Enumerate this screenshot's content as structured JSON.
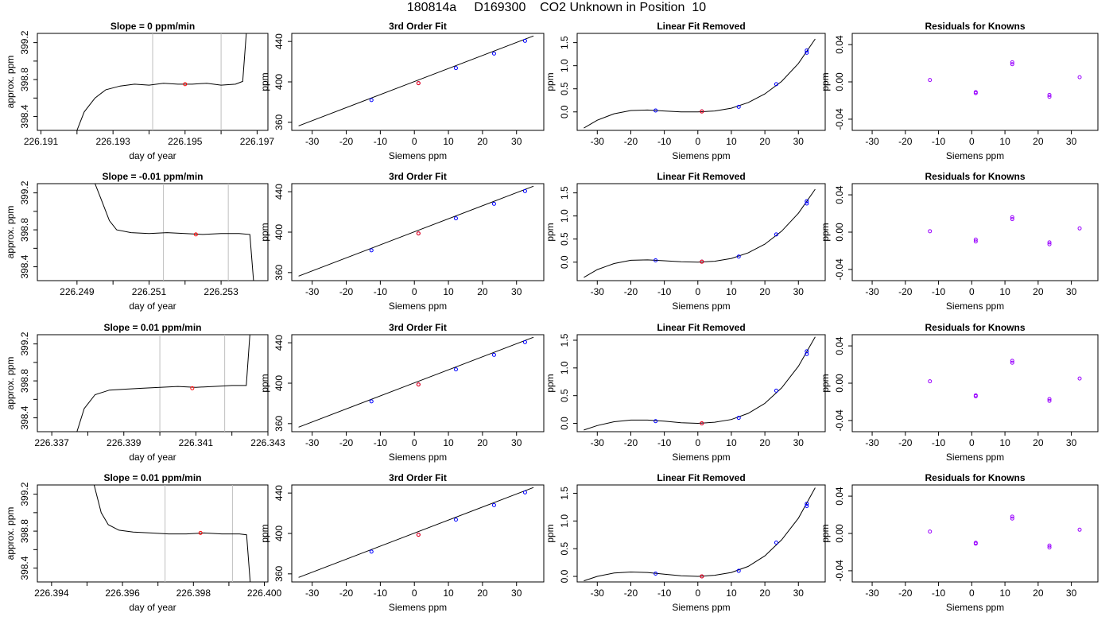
{
  "title": "180814a     D169300    CO2 Unknown in Position  10",
  "colors": {
    "known": "#0000ff",
    "unknown": "#ff0000",
    "residual": "#9900ff",
    "vline": "#bfbfbf",
    "line": "#000000"
  },
  "chart_data": [
    {
      "type": "line",
      "row": 0,
      "col": 0,
      "title": "Slope =  0  ppm/min",
      "xlabel": "day of year",
      "ylabel": "approx. ppm",
      "xlim": [
        226.1909,
        226.1973
      ],
      "ylim": [
        398.25,
        399.3
      ],
      "xticks": [
        "226.191",
        "226.193",
        "226.195",
        "226.197"
      ],
      "yticks": [
        "398.4",
        "398.8",
        "399.2"
      ],
      "vlines": [
        226.1941,
        226.196
      ],
      "marker": [
        226.195,
        398.75
      ],
      "trace": [
        [
          226.192,
          398.25
        ],
        [
          226.1922,
          398.45
        ],
        [
          226.1925,
          398.6
        ],
        [
          226.1928,
          398.69
        ],
        [
          226.1932,
          398.73
        ],
        [
          226.1936,
          398.75
        ],
        [
          226.194,
          398.74
        ],
        [
          226.1944,
          398.76
        ],
        [
          226.1948,
          398.75
        ],
        [
          226.1952,
          398.75
        ],
        [
          226.1956,
          398.76
        ],
        [
          226.196,
          398.74
        ],
        [
          226.1964,
          398.75
        ],
        [
          226.1966,
          398.78
        ],
        [
          226.1967,
          399.3
        ]
      ]
    },
    {
      "type": "line",
      "row": 1,
      "col": 0,
      "title": "Slope =  -0.01  ppm/min",
      "xlabel": "day of year",
      "ylabel": "approx. ppm",
      "xlim": [
        226.2479,
        226.2543
      ],
      "ylim": [
        398.25,
        399.3
      ],
      "xticks": [
        "226.249",
        "226.251",
        "226.253"
      ],
      "yticks": [
        "398.4",
        "398.8",
        "399.2"
      ],
      "vlines": [
        226.2514,
        226.2532
      ],
      "marker": [
        226.2523,
        398.75
      ],
      "trace": [
        [
          226.2495,
          399.3
        ],
        [
          226.2497,
          399.1
        ],
        [
          226.2499,
          398.9
        ],
        [
          226.2501,
          398.8
        ],
        [
          226.2505,
          398.77
        ],
        [
          226.251,
          398.76
        ],
        [
          226.2515,
          398.77
        ],
        [
          226.252,
          398.76
        ],
        [
          226.2525,
          398.75
        ],
        [
          226.253,
          398.76
        ],
        [
          226.2535,
          398.76
        ],
        [
          226.2538,
          398.75
        ],
        [
          226.2539,
          398.25
        ]
      ]
    },
    {
      "type": "line",
      "row": 2,
      "col": 0,
      "title": "Slope =  0.01  ppm/min",
      "xlabel": "day of year",
      "ylabel": "approx. ppm",
      "xlim": [
        226.3366,
        226.343
      ],
      "ylim": [
        398.25,
        399.3
      ],
      "xticks": [
        "226.337",
        "226.339",
        "226.341",
        "226.343"
      ],
      "yticks": [
        "398.4",
        "398.8",
        "399.2"
      ],
      "vlines": [
        226.34,
        226.3418
      ],
      "marker": [
        226.3409,
        398.72
      ],
      "trace": [
        [
          226.3377,
          398.25
        ],
        [
          226.3379,
          398.5
        ],
        [
          226.3382,
          398.65
        ],
        [
          226.3386,
          398.7
        ],
        [
          226.339,
          398.71
        ],
        [
          226.3395,
          398.72
        ],
        [
          226.34,
          398.73
        ],
        [
          226.3405,
          398.74
        ],
        [
          226.341,
          398.73
        ],
        [
          226.3415,
          398.74
        ],
        [
          226.342,
          398.75
        ],
        [
          226.3424,
          398.75
        ],
        [
          226.3425,
          399.3
        ]
      ]
    },
    {
      "type": "line",
      "row": 3,
      "col": 0,
      "title": "Slope =  0.01  ppm/min",
      "xlabel": "day of year",
      "ylabel": "approx. ppm",
      "xlim": [
        226.3936,
        226.4001
      ],
      "ylim": [
        398.25,
        399.3
      ],
      "xticks": [
        "226.394",
        "226.396",
        "226.398",
        "226.400"
      ],
      "yticks": [
        "398.4",
        "398.8",
        "399.2"
      ],
      "vlines": [
        226.3972,
        226.3991
      ],
      "marker": [
        226.3982,
        398.78
      ],
      "trace": [
        [
          226.3952,
          399.3
        ],
        [
          226.3954,
          399.0
        ],
        [
          226.3956,
          398.87
        ],
        [
          226.3959,
          398.81
        ],
        [
          226.3963,
          398.79
        ],
        [
          226.3968,
          398.78
        ],
        [
          226.3973,
          398.77
        ],
        [
          226.3978,
          398.77
        ],
        [
          226.3983,
          398.78
        ],
        [
          226.3988,
          398.77
        ],
        [
          226.3993,
          398.77
        ],
        [
          226.3995,
          398.76
        ],
        [
          226.3996,
          398.25
        ]
      ]
    },
    {
      "type": "scatter",
      "row": 0,
      "col": 1,
      "title": "3rd Order Fit",
      "xlabel": "Siemens ppm",
      "ylabel": "ppm",
      "xlim": [
        -36,
        38
      ],
      "ylim": [
        352,
        448
      ],
      "xticks": [
        -30,
        -20,
        -10,
        0,
        10,
        20,
        30
      ],
      "yticks": [
        360,
        400,
        440
      ],
      "knowns": [
        [
          -12.6,
          382.0
        ],
        [
          1.2,
          398.7
        ],
        [
          12.2,
          413.7
        ],
        [
          23.4,
          428.0
        ],
        [
          32.5,
          440.6
        ]
      ],
      "unknown": [
        [
          1.2,
          398.7
        ]
      ],
      "fit": [
        [
          -34,
          356.5
        ],
        [
          35,
          445.5
        ]
      ]
    },
    {
      "type": "scatter",
      "row": 1,
      "col": 1,
      "title": "3rd Order Fit",
      "xlabel": "Siemens ppm",
      "ylabel": "ppm",
      "xlim": [
        -36,
        38
      ],
      "ylim": [
        352,
        448
      ],
      "xticks": [
        -30,
        -20,
        -10,
        0,
        10,
        20,
        30
      ],
      "yticks": [
        360,
        400,
        440
      ],
      "knowns": [
        [
          -12.6,
          382.0
        ],
        [
          1.2,
          398.7
        ],
        [
          12.2,
          413.7
        ],
        [
          23.4,
          428.0
        ],
        [
          32.5,
          440.6
        ]
      ],
      "unknown": [
        [
          1.2,
          398.7
        ]
      ],
      "fit": [
        [
          -34,
          356.5
        ],
        [
          35,
          445.5
        ]
      ]
    },
    {
      "type": "scatter",
      "row": 2,
      "col": 1,
      "title": "3rd Order Fit",
      "xlabel": "Siemens ppm",
      "ylabel": "ppm",
      "xlim": [
        -36,
        38
      ],
      "ylim": [
        352,
        448
      ],
      "xticks": [
        -30,
        -20,
        -10,
        0,
        10,
        20,
        30
      ],
      "yticks": [
        360,
        400,
        440
      ],
      "knowns": [
        [
          -12.6,
          382.0
        ],
        [
          1.2,
          398.7
        ],
        [
          12.2,
          413.7
        ],
        [
          23.4,
          428.0
        ],
        [
          32.5,
          440.6
        ]
      ],
      "unknown": [
        [
          1.2,
          398.7
        ]
      ],
      "fit": [
        [
          -34,
          356.5
        ],
        [
          35,
          445.5
        ]
      ]
    },
    {
      "type": "scatter",
      "row": 3,
      "col": 1,
      "title": "3rd Order Fit",
      "xlabel": "Siemens ppm",
      "ylabel": "ppm",
      "xlim": [
        -36,
        38
      ],
      "ylim": [
        352,
        448
      ],
      "xticks": [
        -30,
        -20,
        -10,
        0,
        10,
        20,
        30
      ],
      "yticks": [
        360,
        400,
        440
      ],
      "knowns": [
        [
          -12.6,
          382.0
        ],
        [
          1.2,
          398.7
        ],
        [
          12.2,
          413.7
        ],
        [
          23.4,
          428.0
        ],
        [
          32.5,
          440.6
        ]
      ],
      "unknown": [
        [
          1.2,
          398.7
        ]
      ],
      "fit": [
        [
          -34,
          356.5
        ],
        [
          35,
          445.5
        ]
      ]
    },
    {
      "type": "scatter",
      "row": 0,
      "col": 2,
      "title": "Linear Fit Removed",
      "xlabel": "Siemens ppm",
      "ylabel": "ppm",
      "xlim": [
        -36,
        38
      ],
      "ylim": [
        -0.4,
        1.7
      ],
      "xticks": [
        -30,
        -20,
        -10,
        0,
        10,
        20,
        30
      ],
      "yticks": [
        "0.0",
        "0.5",
        "1.0",
        "1.5"
      ],
      "knowns": [
        [
          -12.6,
          0.03
        ],
        [
          1.2,
          0.01
        ],
        [
          12.2,
          0.11
        ],
        [
          23.4,
          0.6
        ],
        [
          32.5,
          1.28
        ],
        [
          32.5,
          1.33
        ]
      ],
      "unknown": [
        [
          1.2,
          0.01
        ]
      ],
      "fit": [
        [
          -34,
          -0.35
        ],
        [
          -30,
          -0.18
        ],
        [
          -25,
          -0.04
        ],
        [
          -20,
          0.03
        ],
        [
          -15,
          0.04
        ],
        [
          -10,
          0.02
        ],
        [
          -5,
          0.0
        ],
        [
          0,
          0.0
        ],
        [
          5,
          0.02
        ],
        [
          10,
          0.08
        ],
        [
          15,
          0.2
        ],
        [
          20,
          0.39
        ],
        [
          25,
          0.66
        ],
        [
          30,
          1.05
        ],
        [
          35,
          1.58
        ]
      ]
    },
    {
      "type": "scatter",
      "row": 1,
      "col": 2,
      "title": "Linear Fit Removed",
      "xlabel": "Siemens ppm",
      "ylabel": "ppm",
      "xlim": [
        -36,
        38
      ],
      "ylim": [
        -0.4,
        1.7
      ],
      "xticks": [
        -30,
        -20,
        -10,
        0,
        10,
        20,
        30
      ],
      "yticks": [
        "0.0",
        "0.5",
        "1.0",
        "1.5"
      ],
      "knowns": [
        [
          -12.6,
          0.04
        ],
        [
          1.2,
          0.01
        ],
        [
          12.2,
          0.12
        ],
        [
          23.4,
          0.6
        ],
        [
          32.5,
          1.27
        ],
        [
          32.5,
          1.32
        ]
      ],
      "unknown": [
        [
          1.2,
          0.01
        ]
      ],
      "fit": [
        [
          -34,
          -0.33
        ],
        [
          -30,
          -0.16
        ],
        [
          -25,
          -0.03
        ],
        [
          -20,
          0.04
        ],
        [
          -15,
          0.05
        ],
        [
          -10,
          0.03
        ],
        [
          -5,
          0.01
        ],
        [
          0,
          0.0
        ],
        [
          5,
          0.02
        ],
        [
          10,
          0.08
        ],
        [
          15,
          0.2
        ],
        [
          20,
          0.39
        ],
        [
          25,
          0.67
        ],
        [
          30,
          1.06
        ],
        [
          35,
          1.58
        ]
      ]
    },
    {
      "type": "scatter",
      "row": 2,
      "col": 2,
      "title": "Linear Fit Removed",
      "xlabel": "Siemens ppm",
      "ylabel": "ppm",
      "xlim": [
        -36,
        38
      ],
      "ylim": [
        -0.15,
        1.6
      ],
      "xticks": [
        -30,
        -20,
        -10,
        0,
        10,
        20,
        30
      ],
      "yticks": [
        "0.0",
        "0.5",
        "1.0",
        "1.5"
      ],
      "knowns": [
        [
          -12.6,
          0.04
        ],
        [
          1.2,
          0.0
        ],
        [
          12.2,
          0.1
        ],
        [
          23.4,
          0.59
        ],
        [
          32.5,
          1.25
        ],
        [
          32.5,
          1.3
        ]
      ],
      "unknown": [
        [
          1.2,
          0.0
        ]
      ],
      "fit": [
        [
          -34,
          -0.12
        ],
        [
          -30,
          -0.04
        ],
        [
          -25,
          0.03
        ],
        [
          -20,
          0.06
        ],
        [
          -15,
          0.06
        ],
        [
          -10,
          0.04
        ],
        [
          -5,
          0.01
        ],
        [
          0,
          0.0
        ],
        [
          5,
          0.02
        ],
        [
          10,
          0.07
        ],
        [
          15,
          0.18
        ],
        [
          20,
          0.36
        ],
        [
          25,
          0.64
        ],
        [
          30,
          1.03
        ],
        [
          35,
          1.56
        ]
      ]
    },
    {
      "type": "scatter",
      "row": 3,
      "col": 2,
      "title": "Linear Fit Removed",
      "xlabel": "Siemens ppm",
      "ylabel": "ppm",
      "xlim": [
        -36,
        38
      ],
      "ylim": [
        -0.1,
        1.65
      ],
      "xticks": [
        -30,
        -20,
        -10,
        0,
        10,
        20,
        30
      ],
      "yticks": [
        "0.0",
        "0.5",
        "1.0",
        "1.5"
      ],
      "knowns": [
        [
          -12.6,
          0.05
        ],
        [
          1.2,
          0.0
        ],
        [
          12.2,
          0.1
        ],
        [
          23.4,
          0.61
        ],
        [
          32.5,
          1.27
        ],
        [
          32.5,
          1.31
        ]
      ],
      "unknown": [
        [
          1.2,
          0.0
        ]
      ],
      "fit": [
        [
          -34,
          -0.08
        ],
        [
          -30,
          0.0
        ],
        [
          -25,
          0.06
        ],
        [
          -20,
          0.08
        ],
        [
          -15,
          0.07
        ],
        [
          -10,
          0.04
        ],
        [
          -5,
          0.01
        ],
        [
          0,
          0.0
        ],
        [
          5,
          0.02
        ],
        [
          10,
          0.07
        ],
        [
          15,
          0.18
        ],
        [
          20,
          0.37
        ],
        [
          25,
          0.66
        ],
        [
          30,
          1.05
        ],
        [
          35,
          1.6
        ]
      ]
    },
    {
      "type": "scatter",
      "row": 0,
      "col": 3,
      "title": "Residuals for Knowns",
      "xlabel": "Siemens ppm",
      "ylabel": "ppm",
      "xlim": [
        -36,
        38
      ],
      "ylim": [
        -0.052,
        0.052
      ],
      "xticks": [
        -30,
        -20,
        -10,
        0,
        10,
        20,
        30
      ],
      "yticks": [
        "-0.04",
        "0.00",
        "0.04"
      ],
      "residuals": [
        [
          -12.6,
          0.002
        ],
        [
          1.2,
          -0.011
        ],
        [
          1.2,
          -0.012
        ],
        [
          12.2,
          0.021
        ],
        [
          12.2,
          0.019
        ],
        [
          23.4,
          -0.014
        ],
        [
          23.4,
          -0.016
        ],
        [
          32.5,
          0.005
        ]
      ]
    },
    {
      "type": "scatter",
      "row": 1,
      "col": 3,
      "title": "Residuals for Knowns",
      "xlabel": "Siemens ppm",
      "ylabel": "ppm",
      "xlim": [
        -36,
        38
      ],
      "ylim": [
        -0.052,
        0.052
      ],
      "xticks": [
        -30,
        -20,
        -10,
        0,
        10,
        20,
        30
      ],
      "yticks": [
        "-0.04",
        "0.00",
        "0.04"
      ],
      "residuals": [
        [
          -12.6,
          0.001
        ],
        [
          1.2,
          -0.008
        ],
        [
          1.2,
          -0.01
        ],
        [
          12.2,
          0.016
        ],
        [
          12.2,
          0.014
        ],
        [
          23.4,
          -0.011
        ],
        [
          23.4,
          -0.013
        ],
        [
          32.5,
          0.004
        ]
      ]
    },
    {
      "type": "scatter",
      "row": 2,
      "col": 3,
      "title": "Residuals for Knowns",
      "xlabel": "Siemens ppm",
      "ylabel": "ppm",
      "xlim": [
        -36,
        38
      ],
      "ylim": [
        -0.052,
        0.052
      ],
      "xticks": [
        -30,
        -20,
        -10,
        0,
        10,
        20,
        30
      ],
      "yticks": [
        "-0.04",
        "0.00",
        "0.04"
      ],
      "residuals": [
        [
          -12.6,
          0.002
        ],
        [
          1.2,
          -0.013
        ],
        [
          1.2,
          -0.014
        ],
        [
          12.2,
          0.024
        ],
        [
          12.2,
          0.022
        ],
        [
          23.4,
          -0.017
        ],
        [
          23.4,
          -0.019
        ],
        [
          32.5,
          0.005
        ]
      ]
    },
    {
      "type": "scatter",
      "row": 3,
      "col": 3,
      "title": "Residuals for Knowns",
      "xlabel": "Siemens ppm",
      "ylabel": "ppm",
      "xlim": [
        -36,
        38
      ],
      "ylim": [
        -0.052,
        0.052
      ],
      "xticks": [
        -30,
        -20,
        -10,
        0,
        10,
        20,
        30
      ],
      "yticks": [
        "-0.04",
        "0.00",
        "0.04"
      ],
      "residuals": [
        [
          -12.6,
          0.002
        ],
        [
          1.2,
          -0.01
        ],
        [
          1.2,
          -0.011
        ],
        [
          12.2,
          0.018
        ],
        [
          12.2,
          0.016
        ],
        [
          23.4,
          -0.013
        ],
        [
          23.4,
          -0.015
        ],
        [
          32.5,
          0.004
        ]
      ]
    }
  ]
}
